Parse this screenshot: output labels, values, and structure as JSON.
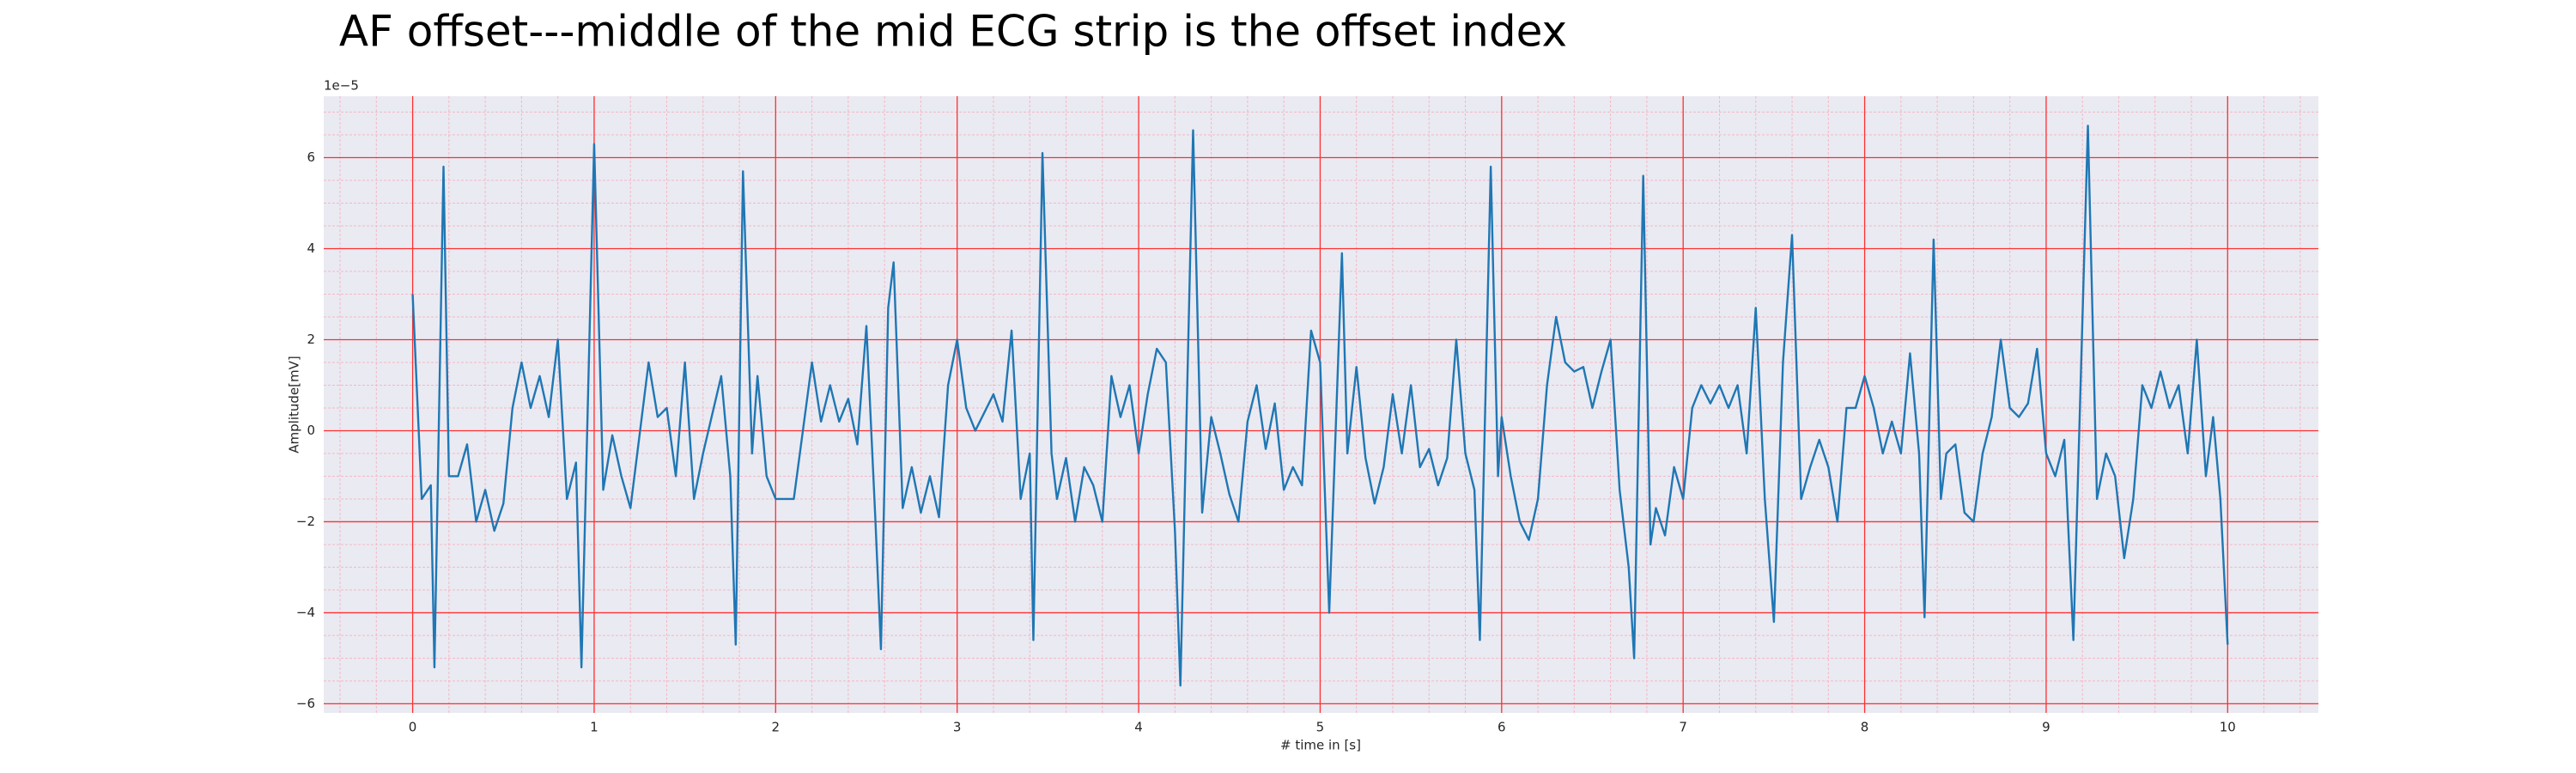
{
  "chart_data": {
    "type": "line",
    "title": "AF offset---middle of the mid ECG strip is the offset index",
    "x_label": "# time in [s]",
    "y_label": "Amplitude[mV]",
    "y_offset_label": "1e−5",
    "color": "#1f77b4",
    "background": "#eaeaf2",
    "grid": true,
    "grid_color": "#ff3030",
    "minor_grid": true,
    "minor_grid_color": "#f4b8c4",
    "minor_grid_step": {
      "x": 0.2,
      "y": 0.5
    },
    "xlim": [
      -0.49,
      10.5
    ],
    "ylim": [
      -6.2,
      7.35
    ],
    "xticks": [
      0,
      1,
      2,
      3,
      4,
      5,
      6,
      7,
      8,
      9,
      10
    ],
    "yticks": [
      {
        "value": -6,
        "label": "−6"
      },
      {
        "value": -4,
        "label": "−4"
      },
      {
        "value": -2,
        "label": "−2"
      },
      0,
      2,
      4,
      6
    ],
    "x": [
      0,
      0.05,
      0.1,
      0.12,
      0.17,
      0.2,
      0.25,
      0.3,
      0.35,
      0.4,
      0.45,
      0.5,
      0.55,
      0.6,
      0.65,
      0.7,
      0.75,
      0.8,
      0.85,
      0.9,
      0.93,
      1.0,
      1.05,
      1.1,
      1.15,
      1.2,
      1.3,
      1.35,
      1.4,
      1.45,
      1.5,
      1.55,
      1.6,
      1.7,
      1.75,
      1.78,
      1.82,
      1.87,
      1.9,
      1.95,
      2.0,
      2.1,
      2.2,
      2.25,
      2.3,
      2.35,
      2.4,
      2.45,
      2.5,
      2.55,
      2.58,
      2.62,
      2.65,
      2.7,
      2.75,
      2.8,
      2.85,
      2.9,
      2.95,
      3.0,
      3.05,
      3.1,
      3.2,
      3.25,
      3.3,
      3.35,
      3.4,
      3.42,
      3.47,
      3.52,
      3.55,
      3.6,
      3.65,
      3.7,
      3.75,
      3.8,
      3.85,
      3.9,
      3.95,
      4.0,
      4.05,
      4.1,
      4.15,
      4.2,
      4.23,
      4.3,
      4.35,
      4.4,
      4.45,
      4.5,
      4.55,
      4.6,
      4.65,
      4.7,
      4.75,
      4.8,
      4.85,
      4.9,
      4.95,
      5.0,
      5.05,
      5.12,
      5.15,
      5.2,
      5.25,
      5.3,
      5.35,
      5.4,
      5.45,
      5.5,
      5.55,
      5.6,
      5.65,
      5.7,
      5.75,
      5.8,
      5.85,
      5.88,
      5.94,
      5.98,
      6.0,
      6.05,
      6.1,
      6.15,
      6.2,
      6.25,
      6.3,
      6.35,
      6.4,
      6.45,
      6.5,
      6.55,
      6.6,
      6.65,
      6.7,
      6.73,
      6.78,
      6.82,
      6.85,
      6.9,
      6.95,
      7.0,
      7.05,
      7.1,
      7.15,
      7.2,
      7.25,
      7.3,
      7.35,
      7.4,
      7.45,
      7.5,
      7.55,
      7.6,
      7.65,
      7.7,
      7.75,
      7.8,
      7.85,
      7.9,
      7.95,
      8.0,
      8.05,
      8.1,
      8.15,
      8.2,
      8.25,
      8.3,
      8.33,
      8.38,
      8.42,
      8.45,
      8.5,
      8.55,
      8.6,
      8.65,
      8.7,
      8.75,
      8.8,
      8.85,
      8.9,
      8.95,
      9.0,
      9.05,
      9.1,
      9.15,
      9.23,
      9.28,
      9.33,
      9.38,
      9.43,
      9.48,
      9.53,
      9.58,
      9.63,
      9.68,
      9.73,
      9.78,
      9.83,
      9.88,
      9.92,
      9.96,
      10.0
    ],
    "values": [
      3.0,
      -1.5,
      -1.2,
      -5.2,
      5.8,
      -1.0,
      -1.0,
      -0.3,
      -2.0,
      -1.3,
      -2.2,
      -1.6,
      0.5,
      1.5,
      0.5,
      1.2,
      0.3,
      2.0,
      -1.5,
      -0.7,
      -5.2,
      6.3,
      -1.3,
      -0.1,
      -1.0,
      -1.7,
      1.5,
      0.3,
      0.5,
      -1.0,
      1.5,
      -1.5,
      -0.5,
      1.2,
      -1.0,
      -4.7,
      5.7,
      -0.5,
      1.2,
      -1.0,
      -1.5,
      -1.5,
      1.5,
      0.2,
      1.0,
      0.2,
      0.7,
      -0.3,
      2.3,
      -2.0,
      -4.8,
      2.7,
      3.7,
      -1.7,
      -0.8,
      -1.8,
      -1.0,
      -1.9,
      1.0,
      2.0,
      0.5,
      0.0,
      0.8,
      0.2,
      2.2,
      -1.5,
      -0.5,
      -4.6,
      6.1,
      -0.5,
      -1.5,
      -0.6,
      -2.0,
      -0.8,
      -1.2,
      -2.0,
      1.2,
      0.3,
      1.0,
      -0.5,
      0.8,
      1.8,
      1.5,
      -2.2,
      -5.6,
      6.6,
      -1.8,
      0.3,
      -0.5,
      -1.4,
      -2.0,
      0.2,
      1.0,
      -0.4,
      0.6,
      -1.3,
      -0.8,
      -1.2,
      2.2,
      1.5,
      -4.0,
      3.9,
      -0.5,
      1.4,
      -0.6,
      -1.6,
      -0.8,
      0.8,
      -0.5,
      1.0,
      -0.8,
      -0.4,
      -1.2,
      -0.6,
      2.0,
      -0.5,
      -1.3,
      -4.6,
      5.8,
      -1.0,
      0.3,
      -1.0,
      -2.0,
      -2.4,
      -1.5,
      1.0,
      2.5,
      1.5,
      1.3,
      1.4,
      0.5,
      1.3,
      2.0,
      -1.3,
      -3.0,
      -5.0,
      5.6,
      -2.5,
      -1.7,
      -2.3,
      -0.8,
      -1.5,
      0.5,
      1.0,
      0.6,
      1.0,
      0.5,
      1.0,
      -0.5,
      2.7,
      -1.5,
      -4.2,
      1.5,
      4.3,
      -1.5,
      -0.8,
      -0.2,
      -0.8,
      -2.0,
      0.5,
      0.5,
      1.2,
      0.5,
      -0.5,
      0.2,
      -0.5,
      1.7,
      -0.5,
      -4.1,
      4.2,
      -1.5,
      -0.5,
      -0.3,
      -1.8,
      -2.0,
      -0.5,
      0.3,
      2.0,
      0.5,
      0.3,
      0.6,
      1.8,
      -0.5,
      -1.0,
      -0.2,
      -4.6,
      6.7,
      -1.5,
      -0.5,
      -1.0,
      -2.8,
      -1.5,
      1.0,
      0.5,
      1.3,
      0.5,
      1.0,
      -0.5,
      2.0,
      -1.0,
      0.3,
      -1.5,
      -4.7
    ]
  }
}
